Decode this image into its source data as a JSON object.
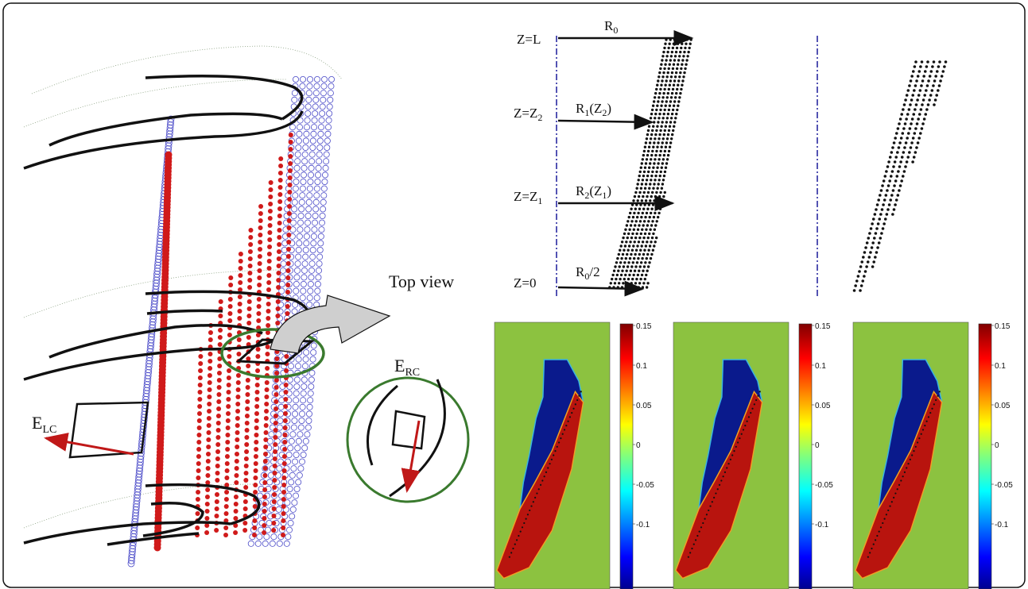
{
  "labels": {
    "e_lc_main": "E",
    "e_lc_sub": "LC",
    "e_rc_main": "E",
    "e_rc_sub": "RC",
    "top_view": "Top view",
    "z_l": "Z=L",
    "z_2_main": "Z=Z",
    "z_2_sub": "2",
    "z_1_main": "Z=Z",
    "z_1_sub": "1",
    "z_0": "Z=0",
    "r0_main": "R",
    "r0_sub": "0",
    "r1_main": "R",
    "r1_sub": "1",
    "r1_arg_main": "(Z",
    "r1_arg_sub": "2",
    "r1_arg_close": ")",
    "r2_main": "R",
    "r2_sub": "2",
    "r2_arg_main": "(Z",
    "r2_arg_sub": "1",
    "r2_arg_close": ")",
    "r0half_main": "R",
    "r0half_sub": "0",
    "r0half_tail": "/2"
  },
  "colorbar": {
    "ticks": [
      "0.15",
      "0.1",
      "0.05",
      "0",
      "-0.05",
      "-0.1"
    ],
    "ticks_third": [
      "0.15",
      "0.1",
      "0.05",
      "0",
      "-0.05",
      "-0.1"
    ]
  },
  "colors": {
    "blue_marker": "#4a4ac8",
    "red_marker": "#d01a1a",
    "green_ellipse": "#3a7a2e",
    "arrow_red": "#c01818",
    "map_bg": "#8cc240",
    "map_blue": "#0a1a8c",
    "map_red": "#b8140e",
    "axis_dash": "#1a1a9a"
  }
}
